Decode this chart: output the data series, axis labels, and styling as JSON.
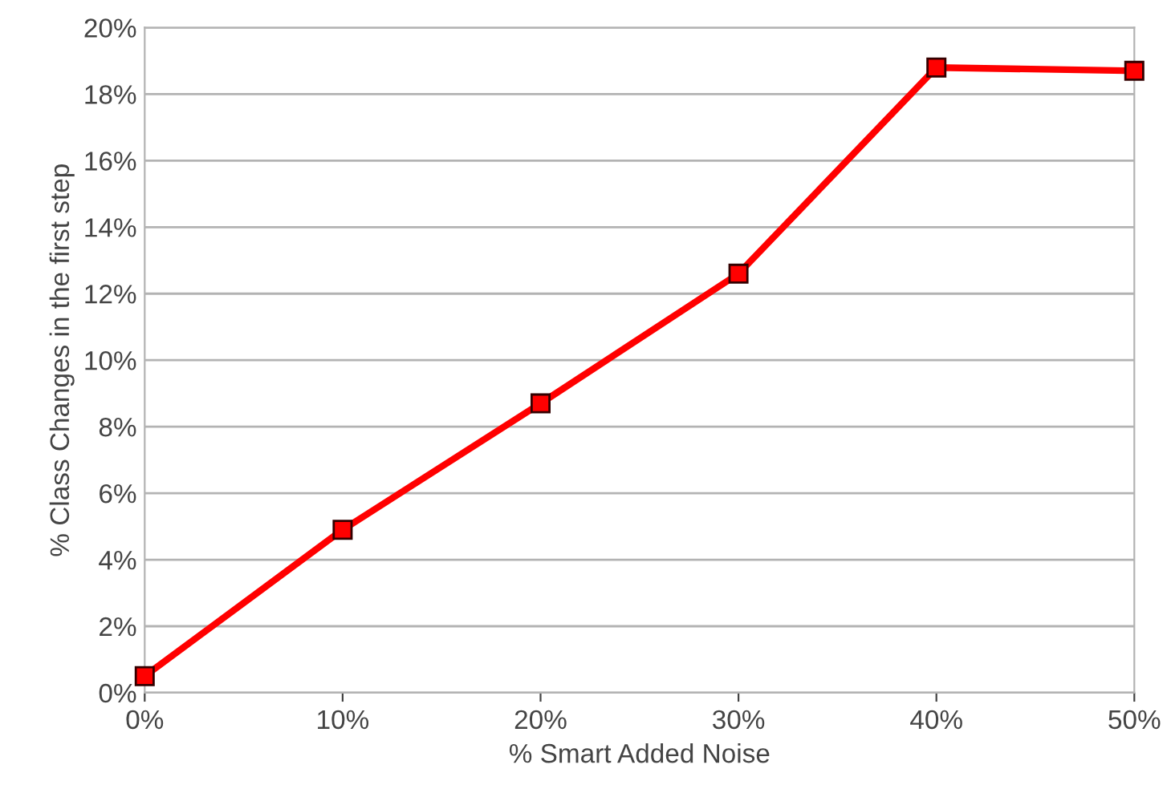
{
  "chart_data": {
    "type": "line",
    "xlabel": "% Smart Added Noise",
    "ylabel": "% Class Changes in the first step",
    "categories": [
      "0%",
      "10%",
      "20%",
      "30%",
      "40%",
      "50%"
    ],
    "series": [
      {
        "color": "#ff0000",
        "values": [
          0.5,
          4.9,
          8.7,
          12.6,
          18.8,
          18.7
        ]
      }
    ],
    "ylim": [
      0,
      20
    ],
    "yticks": [
      {
        "value": 0,
        "label": "0%"
      },
      {
        "value": 2,
        "label": "2%"
      },
      {
        "value": 4,
        "label": "4%"
      },
      {
        "value": 6,
        "label": "6%"
      },
      {
        "value": 8,
        "label": "8%"
      },
      {
        "value": 10,
        "label": "10%"
      },
      {
        "value": 12,
        "label": "12%"
      },
      {
        "value": 14,
        "label": "14%"
      },
      {
        "value": 16,
        "label": "16%"
      },
      {
        "value": 18,
        "label": "18%"
      },
      {
        "value": 20,
        "label": "20%"
      }
    ],
    "grid": "y",
    "marker": "square",
    "line_style": "solid"
  }
}
